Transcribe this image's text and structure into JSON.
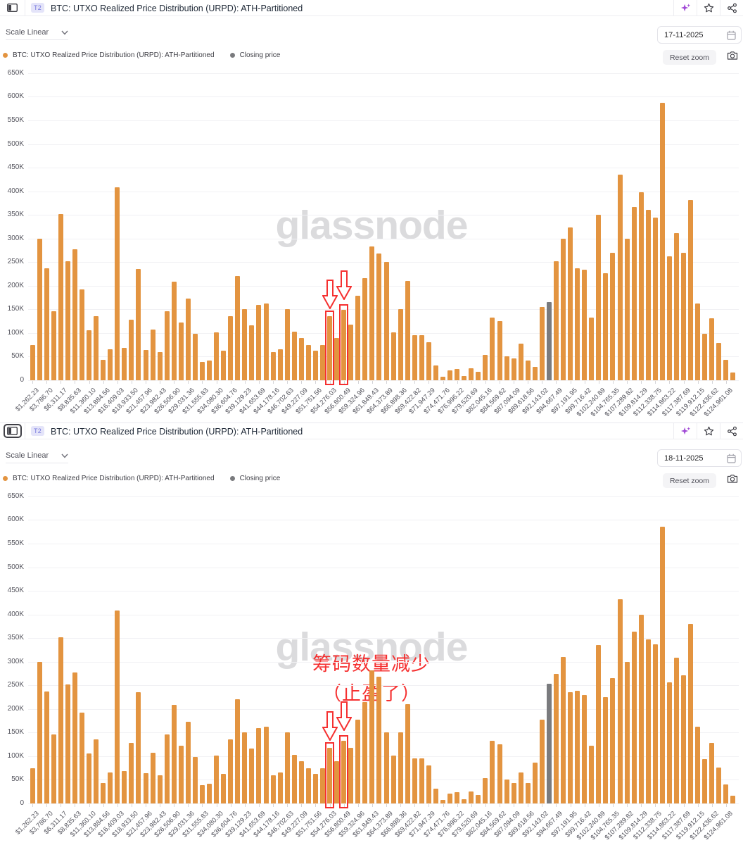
{
  "ui": {
    "badge": "T2",
    "title": "BTC: UTXO Realized Price Distribution (URPD): ATH-Partitioned",
    "scale_label": "Scale Linear",
    "reset_zoom_label": "Reset zoom",
    "legend": {
      "series1": "BTC: UTXO Realized Price Distribution (URPD): ATH-Partitioned",
      "series2": "Closing price"
    },
    "watermark": "glassnode"
  },
  "colors": {
    "bar_orange": "#E39440",
    "closing_bar_gray": "#7A7B7E",
    "annotation_red": "#F53030",
    "badge_bg": "#E4E4F9",
    "badge_text": "#7678DE",
    "sparkle_purple": "#A14BD6"
  },
  "chart_data": [
    {
      "type": "bar",
      "title": "BTC: UTXO Realized Price Distribution (URPD): ATH-Partitioned",
      "date": "17-11-2025",
      "ylim": [
        0,
        650000
      ],
      "values_unit": "thousand BTC-UTXO (K)",
      "y_tick_labels": [
        "0",
        "50K",
        "100K",
        "150K",
        "200K",
        "250K",
        "300K",
        "350K",
        "400K",
        "450K",
        "500K",
        "550K",
        "600K",
        "650K"
      ],
      "x_tick_labels": [
        "$1,262.23",
        "$3,786.70",
        "$6,311.17",
        "$8,835.63",
        "$11,360.10",
        "$13,884.56",
        "$16,409.03",
        "$18,933.50",
        "$21,457.96",
        "$23,982.43",
        "$26,506.90",
        "$29,031.36",
        "$31,555.83",
        "$34,080.30",
        "$36,604.76",
        "$39,129.23",
        "$41,653.69",
        "$44,178.16",
        "$46,702.63",
        "$49,227.09",
        "$51,751.56",
        "$54,276.03",
        "$56,800.49",
        "$59,324.96",
        "$61,849.43",
        "$64,373.89",
        "$66,898.36",
        "$69,422.82",
        "$71,947.29",
        "$74,471.76",
        "$76,996.22",
        "$79,520.69",
        "$82,045.16",
        "$84,569.62",
        "$87,094.09",
        "$89,618.56",
        "$92,143.02",
        "$94,667.49",
        "$97,191.95",
        "$99,716.42",
        "$102,240.89",
        "$104,765.35",
        "$107,289.82",
        "$109,814.29",
        "$112,338.75",
        "$114,863.22",
        "$117,387.69",
        "$119,912.15",
        "$122,436.62",
        "$124,961.08"
      ],
      "x_labels_note": "100 bars total; tick labels mark every other bar starting at bar 1",
      "values_thousands": [
        75,
        300,
        237,
        146,
        352,
        252,
        278,
        192,
        106,
        136,
        44,
        66,
        409,
        69,
        128,
        236,
        64,
        107,
        59,
        146,
        209,
        123,
        173,
        98,
        39,
        42,
        102,
        63,
        136,
        221,
        151,
        116,
        159,
        163,
        59,
        65,
        151,
        103,
        90,
        75,
        62,
        75,
        136,
        90,
        149,
        118,
        179,
        216,
        283,
        268,
        251,
        102,
        151,
        210,
        96,
        95,
        80,
        32,
        7,
        21,
        24,
        9,
        26,
        18,
        53,
        132,
        125,
        51,
        47,
        78,
        42,
        29,
        155,
        165,
        252,
        300,
        324,
        237,
        234,
        133,
        351,
        227,
        270,
        435,
        300,
        367,
        398,
        360,
        344,
        588,
        262,
        311,
        270,
        381,
        163,
        98,
        131,
        79,
        44,
        17
      ],
      "closing_price_bar_index": 73,
      "highlighted_bar_indexes": [
        42,
        44
      ]
    },
    {
      "type": "bar",
      "title": "BTC: UTXO Realized Price Distribution (URPD): ATH-Partitioned",
      "date": "18-11-2025",
      "ylim": [
        0,
        650000
      ],
      "values_unit": "thousand BTC-UTXO (K)",
      "y_tick_labels": [
        "0",
        "50K",
        "100K",
        "150K",
        "200K",
        "250K",
        "300K",
        "350K",
        "400K",
        "450K",
        "500K",
        "550K",
        "600K",
        "650K"
      ],
      "x_tick_labels": [
        "$1,262.23",
        "$3,786.70",
        "$6,311.17",
        "$8,835.63",
        "$11,360.10",
        "$13,884.56",
        "$16,409.03",
        "$18,933.50",
        "$21,457.96",
        "$23,982.43",
        "$26,506.90",
        "$29,031.36",
        "$31,555.83",
        "$34,080.30",
        "$36,604.76",
        "$39,129.23",
        "$41,653.69",
        "$44,178.16",
        "$46,702.63",
        "$49,227.09",
        "$51,751.56",
        "$54,276.03",
        "$56,800.49",
        "$59,324.96",
        "$61,849.43",
        "$64,373.89",
        "$66,898.36",
        "$69,422.82",
        "$71,947.29",
        "$74,471.76",
        "$76,996.22",
        "$79,520.69",
        "$82,045.16",
        "$84,569.62",
        "$87,094.09",
        "$89,618.56",
        "$92,143.02",
        "$94,667.49",
        "$97,191.95",
        "$99,716.42",
        "$102,240.89",
        "$104,765.35",
        "$107,289.82",
        "$109,814.29",
        "$112,338.75",
        "$114,863.22",
        "$117,387.69",
        "$119,912.15",
        "$122,436.62",
        "$124,961.08"
      ],
      "x_labels_note": "100 bars total; tick labels mark every other bar starting at bar 1",
      "values_thousands": [
        75,
        300,
        237,
        146,
        352,
        252,
        278,
        192,
        106,
        136,
        44,
        66,
        409,
        69,
        128,
        236,
        64,
        107,
        59,
        146,
        209,
        123,
        173,
        98,
        39,
        42,
        102,
        63,
        136,
        221,
        151,
        116,
        159,
        163,
        59,
        65,
        151,
        103,
        90,
        75,
        62,
        75,
        118,
        89,
        133,
        118,
        178,
        214,
        281,
        268,
        151,
        102,
        151,
        210,
        96,
        95,
        80,
        32,
        7,
        21,
        24,
        9,
        26,
        18,
        53,
        133,
        126,
        50,
        44,
        66,
        44,
        86,
        178,
        253,
        275,
        310,
        235,
        239,
        229,
        123,
        336,
        225,
        265,
        433,
        299,
        364,
        399,
        347,
        337,
        586,
        256,
        308,
        271,
        380,
        162,
        94,
        128,
        76,
        41,
        17
      ],
      "closing_price_bar_index": 73,
      "highlighted_bar_indexes": [
        42,
        44
      ],
      "annotation": {
        "line1": "筹码数量减少",
        "line2": "（止盈了）"
      }
    }
  ]
}
